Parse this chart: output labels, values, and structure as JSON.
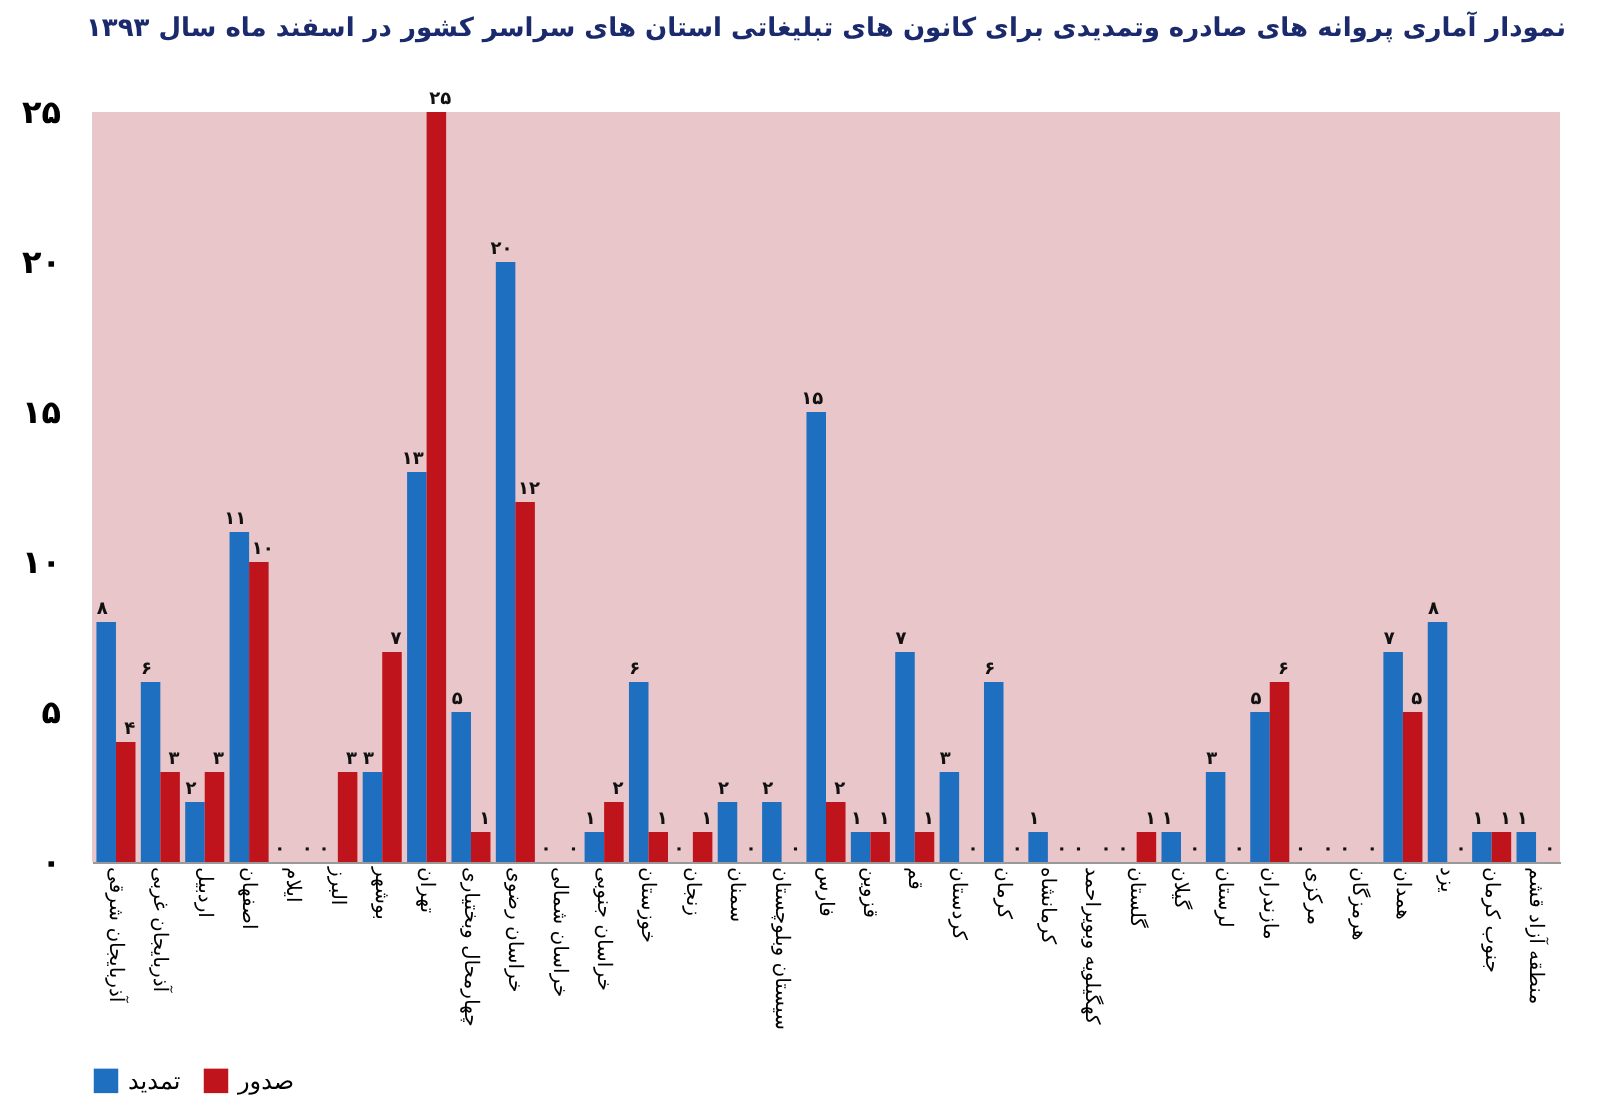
{
  "chart_data": {
    "type": "bar",
    "title": "نمودار آماری پروانه های صادره وتمدیدی برای کانون های تبلیغاتی استان های سراسر کشور در اسفند ماه سال ۱۳۹۳",
    "categories": [
      "آذربایجان شرقی",
      "آذربایجان غربی",
      "اردبیل",
      "اصفهان",
      "ایلام",
      "البرز",
      "بوشهر",
      "تهران",
      "چهارمحال وبختیاری",
      "خراسان رضوی",
      "خراسان شمالی",
      "خراسان جنوبی",
      "خوزستان",
      "زنجان",
      "سمنان",
      "سیستان وبلوچستان",
      "فارس",
      "قزوین",
      "قم",
      "کردستان",
      "کرمان",
      "کرمانشاه",
      "کهگیلویه وبویراحمد",
      "گلستان",
      "گیلان",
      "لرستان",
      "مازندران",
      "مرکزی",
      "هرمزگان",
      "همدان",
      "یزد",
      "جنوب کرمان",
      "منطقه آزاد قشم"
    ],
    "series": [
      {
        "name": "تمدید",
        "color": "#1f6fc0",
        "values": [
          8,
          6,
          2,
          11,
          0,
          0,
          3,
          13,
          5,
          20,
          0,
          1,
          6,
          0,
          2,
          2,
          15,
          1,
          7,
          3,
          6,
          1,
          0,
          0,
          1,
          3,
          5,
          0,
          0,
          7,
          8,
          1,
          1
        ],
        "value_labels": [
          "۸",
          "۶",
          "۲",
          "۱۱",
          "۰",
          "۰",
          "۳",
          "۱۳",
          "۵",
          "۲۰",
          "۰",
          "۱",
          "۶",
          "۰",
          "۲",
          "۲",
          "۱۵",
          "۱",
          "۷",
          "۳",
          "۶",
          "۱",
          "۰",
          "۰",
          "۱",
          "۳",
          "۵",
          "۰",
          "۰",
          "۷",
          "۸",
          "۱",
          "۱"
        ]
      },
      {
        "name": "صدور",
        "color": "#c0141c",
        "values": [
          4,
          3,
          3,
          10,
          0,
          3,
          7,
          25,
          1,
          12,
          0,
          2,
          1,
          1,
          0,
          0,
          2,
          1,
          1,
          0,
          0,
          0,
          0,
          1,
          0,
          0,
          6,
          0,
          0,
          5,
          0,
          1,
          0
        ],
        "value_labels": [
          "۴",
          "۳",
          "۳",
          "۱۰",
          "۰",
          "۳",
          "۷",
          "۲۵",
          "۱",
          "۱۲",
          "۰",
          "۲",
          "۱",
          "۱",
          "۰",
          "۰",
          "۲",
          "۱",
          "۱",
          "۰",
          "۰",
          "۰",
          "۰",
          "۱",
          "۰",
          "۰",
          "۶",
          "۰",
          "۰",
          "۵",
          "۰",
          "۱",
          "۰"
        ]
      }
    ],
    "ylim": [
      0,
      25
    ],
    "yticks": [
      {
        "value": 0,
        "label": "۰"
      },
      {
        "value": 5,
        "label": "۵"
      },
      {
        "value": 10,
        "label": "۱۰"
      },
      {
        "value": 15,
        "label": "۱۵"
      },
      {
        "value": 20,
        "label": "۲۰"
      },
      {
        "value": 25,
        "label": "۲۵"
      }
    ],
    "grid": false,
    "legend": "bottom"
  }
}
